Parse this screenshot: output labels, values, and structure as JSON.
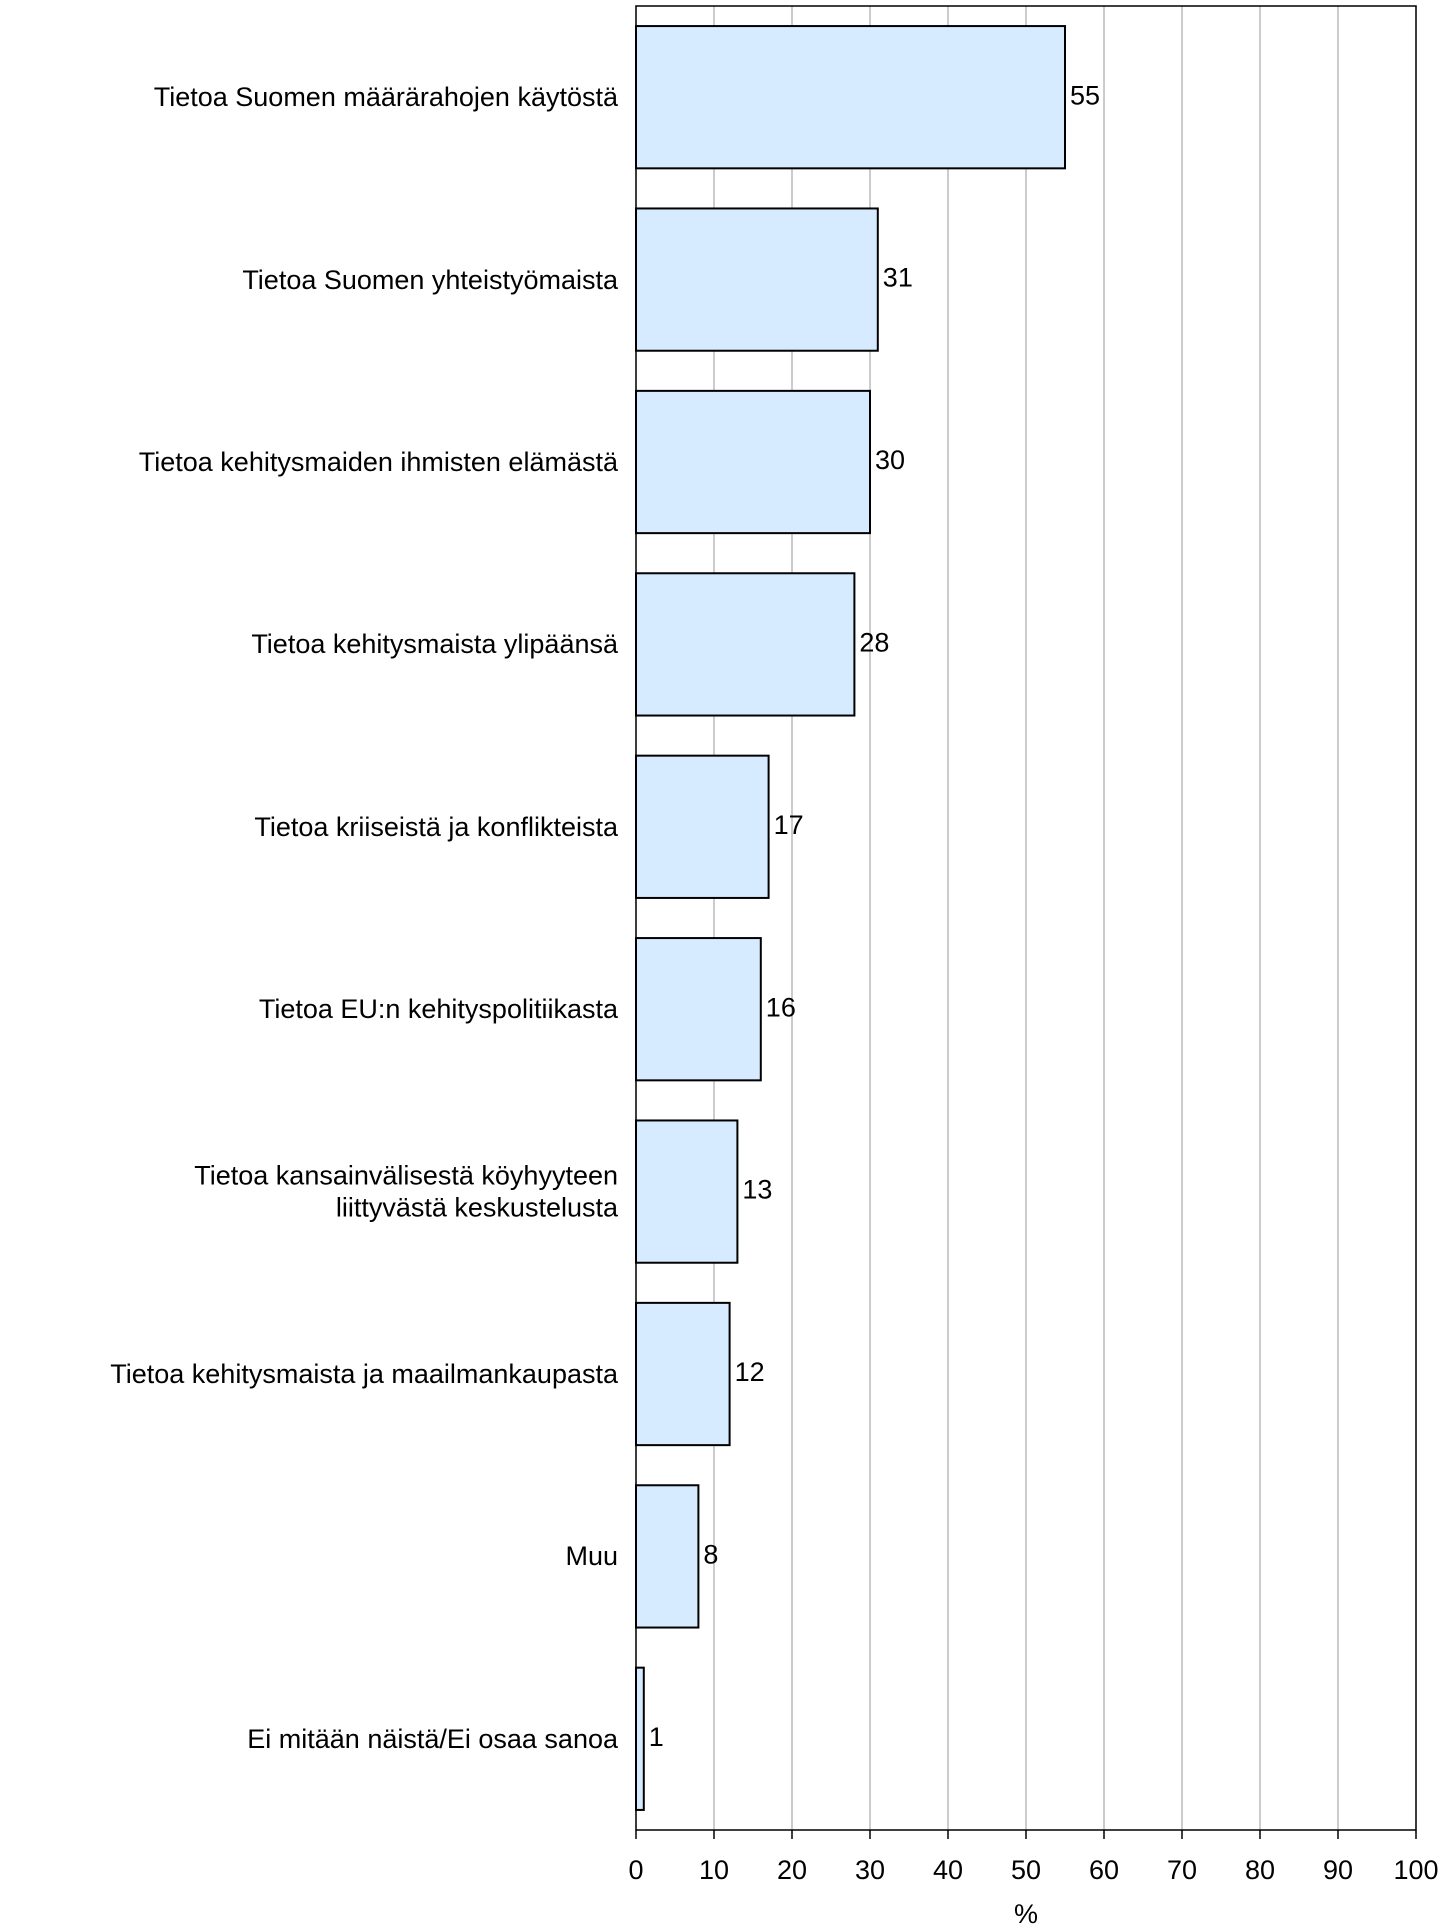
{
  "chart_data": {
    "type": "bar",
    "orientation": "horizontal",
    "categories": [
      "Tietoa Suomen määrärahojen käytöstä",
      "Tietoa Suomen yhteistyömaista",
      "Tietoa kehitysmaiden ihmisten elämästä",
      "Tietoa kehitysmaista ylipäänsä",
      "Tietoa kriiseistä ja konflikteista",
      "Tietoa EU:n kehityspolitiikasta",
      "Tietoa kansainvälisestä köyhyyteen\nliittyvästä keskustelusta",
      "Tietoa kehitysmaista ja maailmankaupasta",
      "Muu",
      "Ei mitään näistä/Ei osaa sanoa"
    ],
    "values": [
      55,
      31,
      30,
      28,
      17,
      16,
      13,
      12,
      8,
      1
    ],
    "color": "#d6ebff",
    "xlim": [
      0,
      100
    ],
    "xticks": [
      0,
      10,
      20,
      30,
      40,
      50,
      60,
      70,
      80,
      90,
      100
    ],
    "xlabel": "%",
    "grid": true
  }
}
